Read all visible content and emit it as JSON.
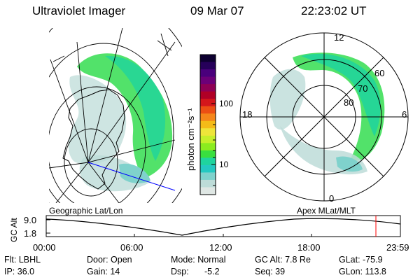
{
  "header": {
    "title": "Ultraviolet Imager",
    "date": "09 Mar 07",
    "time": "22:23:02 UT"
  },
  "colorbar": {
    "label": "photon cm⁻²s⁻¹",
    "ticks": [
      "100",
      "10"
    ],
    "colors": [
      "#0d0030",
      "#26005a",
      "#4a007c",
      "#6c0078",
      "#8e0055",
      "#b00026",
      "#d4161b",
      "#ec4f14",
      "#f5861a",
      "#f4bb18",
      "#eee53a",
      "#c6ef2b",
      "#8bec1f",
      "#39df3f",
      "#1fd49e",
      "#24c9c1",
      "#7fd2cc",
      "#bddcd8",
      "#dfe7e4"
    ]
  },
  "polar_plot": {
    "mlt_labels": [
      "12",
      "18",
      "6",
      "0"
    ],
    "lat_labels": [
      "60",
      "70",
      "80"
    ]
  },
  "timeline": {
    "left_caption": "Geographic Lat/Lon",
    "right_caption": "Apex MLat/MLT",
    "axis_label": "GC Alt",
    "y_ticks": [
      "9.0",
      "1.8"
    ],
    "x_ticks": [
      "00:00",
      "06:00",
      "12:00",
      "18:00",
      "23:59"
    ]
  },
  "info": {
    "filter": "Flt: LBHL",
    "ip": "IP: 36.0",
    "door": "Door: Open",
    "gain": "Gain: 14",
    "mode": "Mode: Normal",
    "dsp": "Dsp:",
    "dsp_value": "-5.2",
    "gc_alt": "GC Alt: 7.8 Re",
    "seq": "Seq: 39",
    "glat": "GLat: -75.9",
    "glon": "GLon: 113.8"
  }
}
